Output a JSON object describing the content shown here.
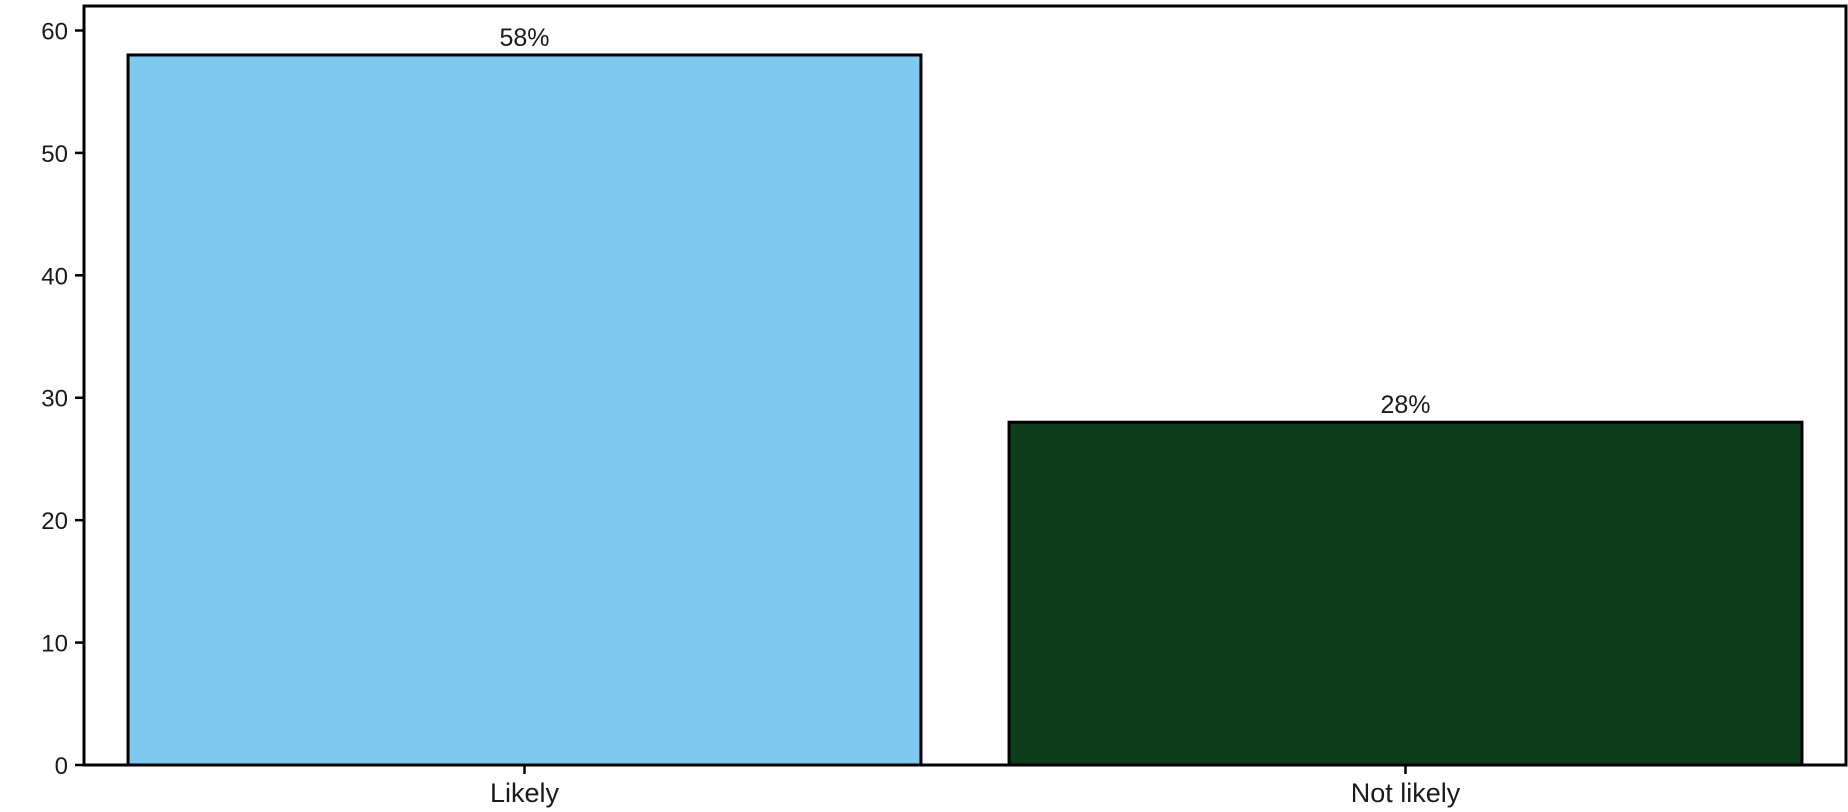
{
  "chart_data": {
    "type": "bar",
    "categories": [
      "Likely",
      "Not likely"
    ],
    "values": [
      58,
      28
    ],
    "data_labels": [
      "58%",
      "28%"
    ],
    "title": "",
    "xlabel": "",
    "ylabel": "",
    "ylim": [
      0,
      62
    ],
    "yticks": [
      0,
      10,
      20,
      30,
      40,
      50,
      60
    ],
    "grid": false,
    "legend": "none",
    "colors": [
      "#7dc9f0",
      "#0d3d1a"
    ],
    "edge_color": "#000000"
  }
}
